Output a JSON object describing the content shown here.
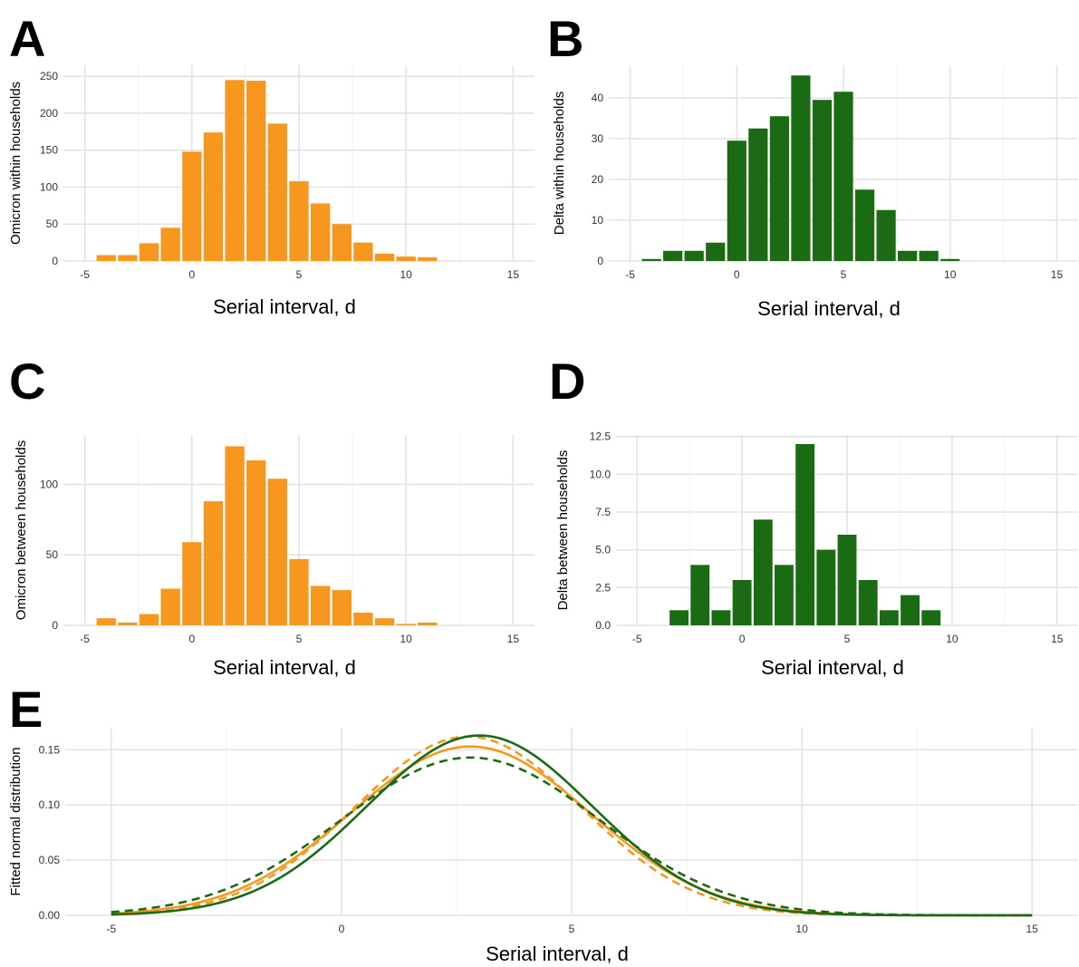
{
  "colors": {
    "omicron": "#f7971e",
    "delta": "#1a6b14"
  },
  "chart_data": [
    {
      "panel": "A",
      "type": "bar",
      "ylabel": "Omicron within households",
      "xlabel": "Serial interval, d",
      "color": "#f7971e",
      "xlim": [
        -5,
        15
      ],
      "ylim": [
        0,
        265
      ],
      "xticks": [
        -5,
        0,
        5,
        10,
        15
      ],
      "yticks": [
        0,
        50,
        100,
        150,
        200,
        250
      ],
      "ytick_labels": [
        "0",
        "50",
        "100",
        "150",
        "200",
        "250"
      ],
      "x": [
        -4,
        -3,
        -2,
        -1,
        0,
        1,
        2,
        3,
        4,
        5,
        6,
        7,
        8,
        9,
        10,
        11
      ],
      "values": [
        8,
        8,
        24,
        45,
        148,
        174,
        245,
        244,
        186,
        108,
        78,
        50,
        25,
        10,
        6,
        5
      ]
    },
    {
      "panel": "B",
      "type": "bar",
      "ylabel": "Delta within households",
      "xlabel": "Serial interval, d",
      "color": "#1a6b14",
      "xlim": [
        -5,
        15
      ],
      "ylim": [
        0,
        48
      ],
      "xticks": [
        -5,
        0,
        5,
        10,
        15
      ],
      "yticks": [
        0,
        10,
        20,
        30,
        40
      ],
      "ytick_labels": [
        "0",
        "10",
        "20",
        "30",
        "40"
      ],
      "x": [
        -4,
        -3,
        -2,
        -1,
        0,
        1,
        2,
        3,
        4,
        5,
        6,
        7,
        8,
        9,
        10
      ],
      "values": [
        0.5,
        2.5,
        2.5,
        4.5,
        29.5,
        32.5,
        35.5,
        45.5,
        39.5,
        41.5,
        17.5,
        12.5,
        2.5,
        2.5,
        0.5
      ]
    },
    {
      "panel": "C",
      "type": "bar",
      "ylabel": "Omicron between households",
      "xlabel": "Serial interval, d",
      "color": "#f7971e",
      "xlim": [
        -5,
        15
      ],
      "ylim": [
        0,
        135
      ],
      "xticks": [
        -5,
        0,
        5,
        10,
        15
      ],
      "yticks": [
        0,
        50,
        100
      ],
      "ytick_labels": [
        "0",
        "50",
        "100"
      ],
      "x": [
        -4,
        -3,
        -2,
        -1,
        0,
        1,
        2,
        3,
        4,
        5,
        6,
        7,
        8,
        9,
        10,
        11
      ],
      "values": [
        5,
        2,
        8,
        26,
        59,
        88,
        127,
        117,
        104,
        47,
        28,
        25,
        9,
        5,
        1,
        2
      ]
    },
    {
      "panel": "D",
      "type": "bar",
      "ylabel": "Delta between households",
      "xlabel": "Serial interval, d",
      "color": "#1a6b14",
      "xlim": [
        -5,
        15
      ],
      "ylim": [
        0,
        12.6
      ],
      "xticks": [
        -5,
        0,
        5,
        10,
        15
      ],
      "yticks": [
        0,
        2.5,
        5,
        7.5,
        10,
        12.5
      ],
      "ytick_labels": [
        "0.0",
        "2.5",
        "5.0",
        "7.5",
        "10.0",
        "12.5"
      ],
      "x": [
        -3,
        -2,
        -1,
        0,
        1,
        2,
        3,
        4,
        5,
        6,
        7,
        8,
        9
      ],
      "values": [
        1,
        4,
        1,
        3,
        7,
        4,
        12,
        5,
        6,
        3,
        1,
        2,
        1
      ]
    },
    {
      "panel": "E",
      "type": "line",
      "ylabel": "Fitted normal distribution",
      "xlabel": "Serial interval, d",
      "xlim": [
        -5,
        15
      ],
      "ylim": [
        0,
        0.17
      ],
      "xticks": [
        -5,
        0,
        5,
        10,
        15
      ],
      "yticks": [
        0,
        0.05,
        0.1,
        0.15
      ],
      "ytick_labels": [
        "0.00",
        "0.05",
        "0.10",
        "0.15"
      ],
      "series": [
        {
          "color": "#f7971e",
          "dash": false,
          "mean": 2.8,
          "sd": 2.6,
          "peak": 0.153
        },
        {
          "color": "#f7971e",
          "dash": true,
          "mean": 2.75,
          "sd": 2.45,
          "peak": 0.162
        },
        {
          "color": "#1a6b14",
          "dash": false,
          "mean": 3.0,
          "sd": 2.45,
          "peak": 0.163
        },
        {
          "color": "#1a6b14",
          "dash": true,
          "mean": 2.8,
          "sd": 2.8,
          "peak": 0.143
        }
      ]
    }
  ]
}
